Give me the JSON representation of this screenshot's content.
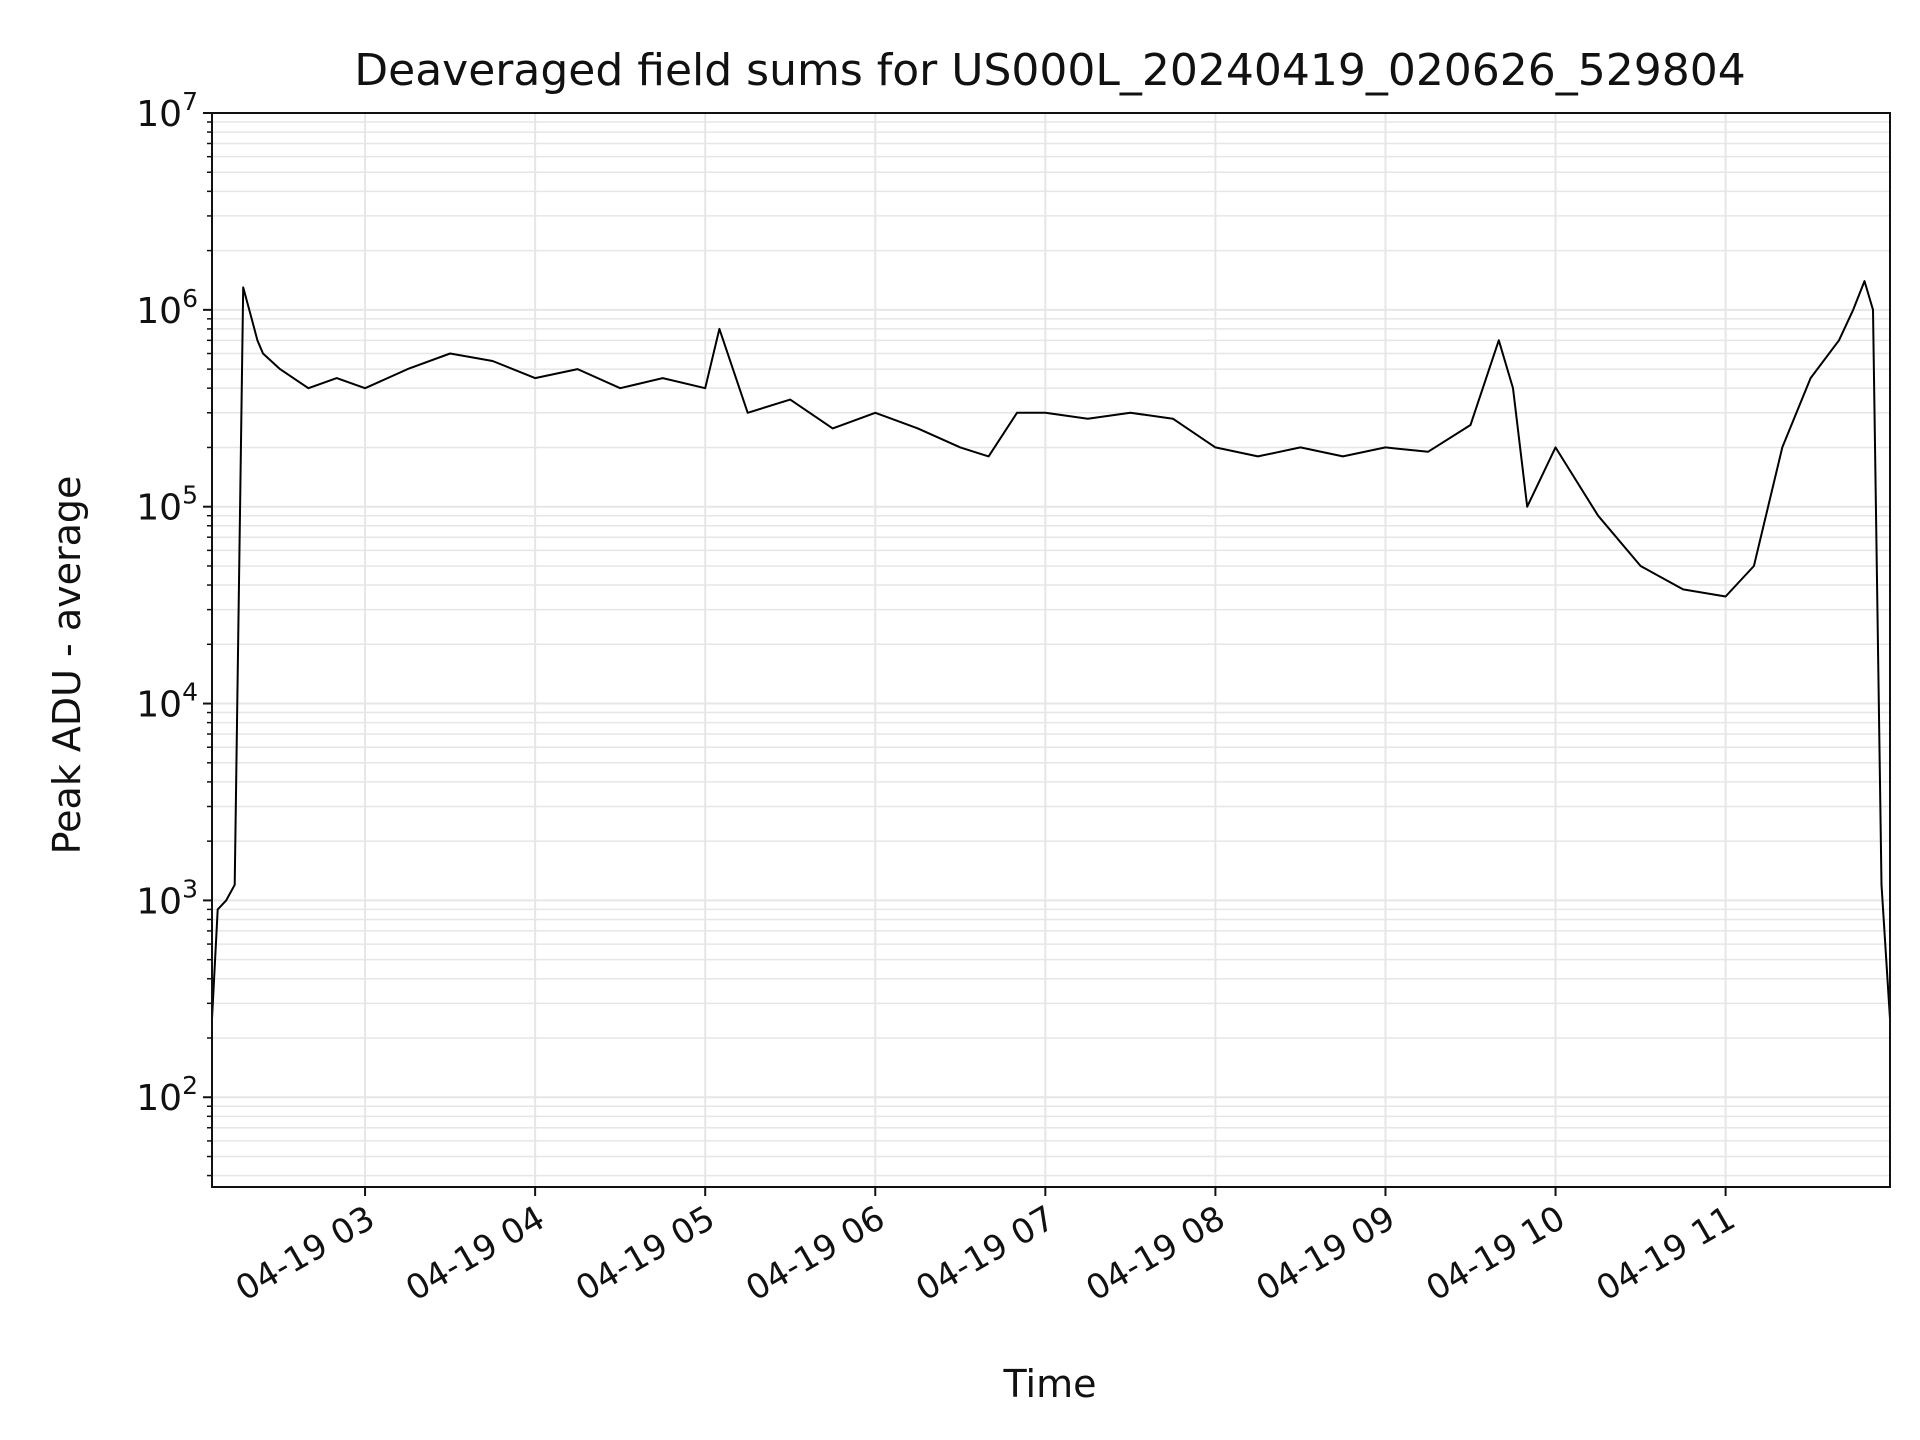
{
  "chart_data": {
    "type": "line",
    "title": "Deaveraged field sums for US000L_20240419_020626_529804",
    "xlabel": "Time",
    "ylabel": "Peak ADU - average",
    "yscale": "log",
    "ylim": [
      35,
      10000000
    ],
    "xlim": [
      "2024-04-19 02:06",
      "2024-04-19 11:58"
    ],
    "grid": true,
    "line_color": "#000000",
    "grid_color": "#e6e6e6",
    "x_ticks": [
      {
        "value": "2024-04-19 03:00",
        "label": "04-19 03"
      },
      {
        "value": "2024-04-19 04:00",
        "label": "04-19 04"
      },
      {
        "value": "2024-04-19 05:00",
        "label": "04-19 05"
      },
      {
        "value": "2024-04-19 06:00",
        "label": "04-19 06"
      },
      {
        "value": "2024-04-19 07:00",
        "label": "04-19 07"
      },
      {
        "value": "2024-04-19 08:00",
        "label": "04-19 08"
      },
      {
        "value": "2024-04-19 09:00",
        "label": "04-19 09"
      },
      {
        "value": "2024-04-19 10:00",
        "label": "04-19 10"
      },
      {
        "value": "2024-04-19 11:00",
        "label": "04-19 11"
      }
    ],
    "y_ticks": [
      {
        "value": 100,
        "base": "10",
        "exp": "2"
      },
      {
        "value": 1000,
        "base": "10",
        "exp": "3"
      },
      {
        "value": 10000,
        "base": "10",
        "exp": "4"
      },
      {
        "value": 100000,
        "base": "10",
        "exp": "5"
      },
      {
        "value": 1000000,
        "base": "10",
        "exp": "6"
      },
      {
        "value": 10000000,
        "base": "10",
        "exp": "7"
      }
    ],
    "series": [
      {
        "x": [
          "2024-04-19 02:06",
          "2024-04-19 02:08",
          "2024-04-19 02:11",
          "2024-04-19 02:14",
          "2024-04-19 02:17",
          "2024-04-19 02:20",
          "2024-04-19 02:22",
          "2024-04-19 02:24",
          "2024-04-19 02:30",
          "2024-04-19 02:40",
          "2024-04-19 02:50",
          "2024-04-19 03:00",
          "2024-04-19 03:15",
          "2024-04-19 03:30",
          "2024-04-19 03:45",
          "2024-04-19 04:00",
          "2024-04-19 04:15",
          "2024-04-19 04:30",
          "2024-04-19 04:45",
          "2024-04-19 05:00",
          "2024-04-19 05:05",
          "2024-04-19 05:15",
          "2024-04-19 05:30",
          "2024-04-19 05:45",
          "2024-04-19 06:00",
          "2024-04-19 06:15",
          "2024-04-19 06:30",
          "2024-04-19 06:40",
          "2024-04-19 06:50",
          "2024-04-19 07:00",
          "2024-04-19 07:15",
          "2024-04-19 07:30",
          "2024-04-19 07:45",
          "2024-04-19 08:00",
          "2024-04-19 08:15",
          "2024-04-19 08:30",
          "2024-04-19 08:45",
          "2024-04-19 09:00",
          "2024-04-19 09:15",
          "2024-04-19 09:30",
          "2024-04-19 09:40",
          "2024-04-19 09:45",
          "2024-04-19 09:50",
          "2024-04-19 10:00",
          "2024-04-19 10:15",
          "2024-04-19 10:30",
          "2024-04-19 10:45",
          "2024-04-19 11:00",
          "2024-04-19 11:10",
          "2024-04-19 11:20",
          "2024-04-19 11:30",
          "2024-04-19 11:40",
          "2024-04-19 11:45",
          "2024-04-19 11:49",
          "2024-04-19 11:52",
          "2024-04-19 11:55",
          "2024-04-19 11:58"
        ],
        "y": [
          250,
          900,
          1000,
          1200,
          1300000,
          900000,
          700000,
          600000,
          500000,
          400000,
          450000,
          400000,
          500000,
          600000,
          550000,
          450000,
          500000,
          400000,
          450000,
          400000,
          800000,
          300000,
          350000,
          250000,
          300000,
          250000,
          200000,
          180000,
          300000,
          300000,
          280000,
          300000,
          280000,
          200000,
          180000,
          200000,
          180000,
          200000,
          190000,
          260000,
          700000,
          400000,
          100000,
          200000,
          90000,
          50000,
          38000,
          35000,
          50000,
          200000,
          450000,
          700000,
          1000000,
          1400000,
          1000000,
          1200,
          250
        ]
      }
    ]
  }
}
